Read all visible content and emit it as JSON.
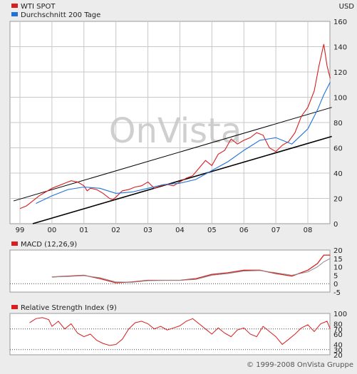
{
  "currency_label": "USD",
  "watermark": "OnVista",
  "copyright": "© 1999-2008 OnVista Gruppe",
  "colors": {
    "price": "#d81e1e",
    "ma200": "#1e73d8",
    "macd": "#d81e1e",
    "signal": "#8a8a8a",
    "rsi": "#d81e1e",
    "trend": "#000000",
    "grid": "#c8c8c8",
    "plot_bg": "#ffffff",
    "page_bg": "#ececec"
  },
  "chart_data": [
    {
      "type": "line",
      "legend": [
        "WTI SPOT",
        "Durchschnitt 200 Tage"
      ],
      "x_ticks": [
        "99",
        "00",
        "01",
        "02",
        "03",
        "04",
        "05",
        "06",
        "07",
        "08"
      ],
      "ylim": [
        0,
        160
      ],
      "y_ticks": [
        0,
        20,
        40,
        60,
        80,
        100,
        120,
        140,
        160
      ],
      "grid": true,
      "series": [
        {
          "name": "WTI SPOT",
          "x": [
            1999.0,
            1999.2,
            1999.4,
            1999.6,
            1999.8,
            2000.0,
            2000.2,
            2000.4,
            2000.6,
            2000.8,
            2001.0,
            2001.1,
            2001.2,
            2001.4,
            2001.6,
            2001.8,
            2001.9,
            2002.0,
            2002.2,
            2002.4,
            2002.6,
            2002.8,
            2003.0,
            2003.2,
            2003.4,
            2003.6,
            2003.8,
            2004.0,
            2004.2,
            2004.4,
            2004.6,
            2004.8,
            2005.0,
            2005.2,
            2005.4,
            2005.6,
            2005.8,
            2006.0,
            2006.2,
            2006.4,
            2006.6,
            2006.8,
            2007.0,
            2007.2,
            2007.4,
            2007.6,
            2007.8,
            2008.0,
            2008.2,
            2008.35,
            2008.5,
            2008.6,
            2008.7
          ],
          "values": [
            12,
            14,
            18,
            22,
            25,
            28,
            30,
            32,
            34,
            33,
            30,
            26,
            28,
            27,
            24,
            20,
            19,
            21,
            26,
            27,
            29,
            30,
            33,
            28,
            30,
            31,
            30,
            33,
            36,
            38,
            44,
            50,
            46,
            55,
            58,
            67,
            63,
            66,
            68,
            72,
            70,
            60,
            57,
            62,
            65,
            72,
            85,
            92,
            105,
            125,
            142,
            125,
            115
          ]
        },
        {
          "name": "Durchschnitt 200 Tage",
          "x": [
            1999.5,
            2000.0,
            2000.5,
            2001.0,
            2001.5,
            2002.0,
            2002.5,
            2003.0,
            2003.5,
            2004.0,
            2004.5,
            2005.0,
            2005.5,
            2006.0,
            2006.5,
            2007.0,
            2007.5,
            2008.0,
            2008.3,
            2008.5,
            2008.7
          ],
          "values": [
            16,
            22,
            27,
            29,
            28,
            24,
            25,
            28,
            31,
            32,
            35,
            42,
            49,
            58,
            66,
            68,
            63,
            75,
            90,
            102,
            112
          ]
        }
      ],
      "trendlines": [
        {
          "x": [
            1998.8,
            2008.75
          ],
          "values": [
            18,
            92
          ]
        },
        {
          "x": [
            1999.4,
            2008.75
          ],
          "values": [
            0,
            69
          ]
        }
      ]
    },
    {
      "type": "line",
      "legend": [
        "MACD (12,26,9)"
      ],
      "ylim": [
        -5,
        20
      ],
      "y_ticks": [
        -5,
        0,
        5,
        10,
        15,
        20
      ],
      "series": [
        {
          "name": "MACD (12,26,9)",
          "x": [
            2000.0,
            2000.5,
            2001.0,
            2001.5,
            2002.0,
            2002.5,
            2003.0,
            2003.5,
            2004.0,
            2004.5,
            2005.0,
            2005.5,
            2006.0,
            2006.5,
            2007.0,
            2007.5,
            2008.0,
            2008.3,
            2008.5,
            2008.7
          ],
          "values": [
            4,
            4.5,
            5,
            3,
            0.5,
            1,
            2,
            2,
            2,
            3,
            5.5,
            6.5,
            8,
            8,
            6,
            4.5,
            8,
            12,
            17,
            17
          ]
        },
        {
          "x": [
            2000.0,
            2000.5,
            2001.0,
            2001.5,
            2002.0,
            2002.5,
            2003.0,
            2003.5,
            2004.0,
            2004.5,
            2005.0,
            2005.5,
            2006.0,
            2006.5,
            2007.0,
            2007.5,
            2008.0,
            2008.3,
            2008.5,
            2008.7
          ],
          "values": [
            4,
            4.3,
            4.8,
            3.5,
            1,
            0.8,
            1.8,
            2,
            2,
            2.5,
            5,
            6,
            7.5,
            7.8,
            6.5,
            5,
            7,
            10,
            13,
            15
          ]
        }
      ]
    },
    {
      "type": "line",
      "legend": [
        "Relative Strength Index (9)"
      ],
      "ylim": [
        20,
        100
      ],
      "y_ticks": [
        20,
        30,
        40,
        60,
        70,
        80,
        100
      ],
      "series": [
        {
          "name": "Relative Strength Index (9)",
          "x": [
            1999.3,
            1999.5,
            1999.7,
            1999.9,
            2000.0,
            2000.2,
            2000.4,
            2000.6,
            2000.8,
            2001.0,
            2001.2,
            2001.4,
            2001.6,
            2001.8,
            2002.0,
            2002.2,
            2002.4,
            2002.6,
            2002.8,
            2003.0,
            2003.2,
            2003.4,
            2003.6,
            2003.8,
            2004.0,
            2004.2,
            2004.4,
            2004.6,
            2004.8,
            2005.0,
            2005.2,
            2005.4,
            2005.6,
            2005.8,
            2006.0,
            2006.2,
            2006.4,
            2006.6,
            2006.8,
            2007.0,
            2007.2,
            2007.4,
            2007.6,
            2007.8,
            2008.0,
            2008.2,
            2008.4,
            2008.6,
            2008.7
          ],
          "values": [
            82,
            90,
            92,
            88,
            75,
            85,
            70,
            80,
            62,
            55,
            60,
            48,
            42,
            38,
            40,
            50,
            70,
            82,
            85,
            80,
            70,
            75,
            68,
            72,
            76,
            85,
            90,
            80,
            70,
            60,
            72,
            62,
            55,
            68,
            72,
            60,
            55,
            75,
            65,
            55,
            40,
            50,
            60,
            72,
            78,
            65,
            80,
            85,
            70
          ]
        }
      ]
    }
  ]
}
